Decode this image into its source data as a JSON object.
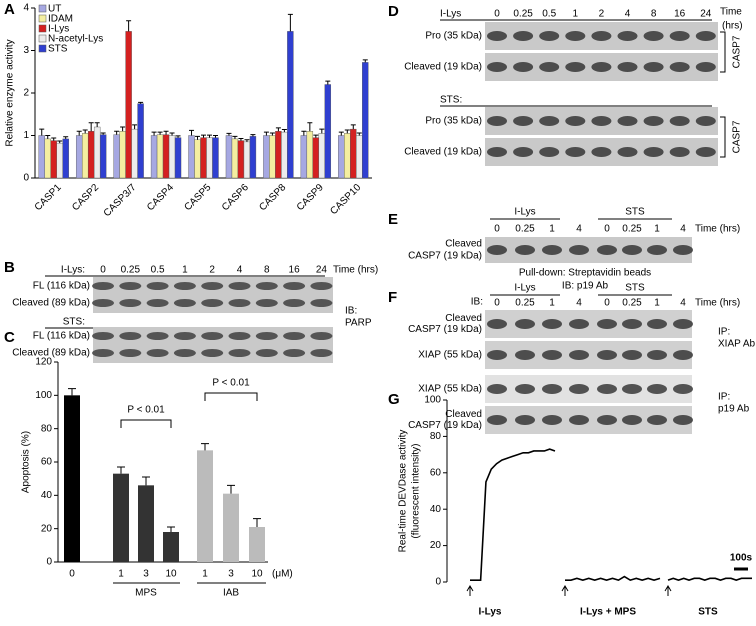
{
  "chart_data": [
    {
      "panel_label": "A",
      "type": "bar",
      "ylabel": "Relative enzyme activity",
      "categories": [
        "CASP1",
        "CASP2",
        "CASP3/7",
        "CASP4",
        "CASP5",
        "CASP6",
        "CASP8",
        "CASP9",
        "CASP10"
      ],
      "series": [
        {
          "name": "UT",
          "color": "#a6a8e2",
          "values": [
            1.0,
            1.0,
            1.02,
            1.0,
            1.0,
            1.0,
            1.0,
            1.0,
            1.0
          ],
          "errors": [
            0.15,
            0.1,
            0.08,
            0.08,
            0.12,
            0.05,
            0.08,
            0.1,
            0.08
          ]
        },
        {
          "name": "IDAM",
          "color": "#f4eea0",
          "values": [
            0.92,
            1.05,
            1.1,
            1.02,
            0.9,
            0.92,
            1.0,
            1.1,
            1.05
          ],
          "errors": [
            0.08,
            0.08,
            0.1,
            0.06,
            0.08,
            0.06,
            0.06,
            0.2,
            0.08
          ]
        },
        {
          "name": "I-Lys",
          "color": "#d42020",
          "values": [
            0.88,
            1.1,
            3.45,
            1.02,
            0.95,
            0.88,
            1.1,
            0.95,
            1.15
          ],
          "errors": [
            0.06,
            0.2,
            0.25,
            0.08,
            0.06,
            0.05,
            0.08,
            0.06,
            0.1
          ]
        },
        {
          "name": "N-acetyl-Lys",
          "color": "#ececec",
          "values": [
            0.82,
            1.2,
            1.15,
            1.0,
            0.95,
            0.85,
            1.08,
            1.05,
            1.0
          ],
          "errors": [
            0.05,
            0.1,
            0.1,
            0.06,
            0.06,
            0.05,
            0.06,
            0.1,
            0.06
          ]
        },
        {
          "name": "STS",
          "color": "#2f3fd0",
          "values": [
            0.92,
            1.02,
            1.75,
            0.95,
            0.95,
            0.98,
            3.45,
            2.2,
            2.72
          ],
          "errors": [
            0.05,
            0.04,
            0.03,
            0.04,
            0.05,
            0.04,
            0.4,
            0.08,
            0.06
          ]
        }
      ],
      "ylim": [
        0,
        4
      ],
      "yticks": [
        0,
        1,
        2,
        3,
        4
      ]
    },
    {
      "panel_label": "C",
      "type": "bar",
      "ylabel": "Apoptosis (%)",
      "categories": [
        "0",
        "1",
        "3",
        "10",
        "1",
        "3",
        "10"
      ],
      "values": [
        100,
        53,
        46,
        18,
        67,
        41,
        21
      ],
      "errors": [
        4,
        4,
        5,
        3,
        4,
        5,
        5
      ],
      "colors": [
        "#000000",
        "#333333",
        "#333333",
        "#333333",
        "#bbbbbb",
        "#bbbbbb",
        "#bbbbbb"
      ],
      "groups": [
        "MPS",
        "IAB"
      ],
      "unit": "(μM)",
      "annotations": [
        "P < 0.01",
        "P < 0.01"
      ],
      "ylim": [
        0,
        120
      ],
      "yticks": [
        0,
        20,
        40,
        60,
        80,
        100,
        120
      ]
    },
    {
      "panel_label": "G",
      "type": "line",
      "ylabel": [
        "Real-time DEVDase activity",
        "(fluorescent intensity)"
      ],
      "series": [
        {
          "name": "I-Lys",
          "color": "#000000",
          "values": [
            1,
            1,
            1,
            55,
            62,
            65,
            67,
            68,
            69,
            70,
            71,
            71,
            72,
            72,
            72,
            73,
            72
          ]
        },
        {
          "name": "I-Lys + MPS",
          "color": "#000000",
          "values": [
            1,
            1,
            2,
            1,
            2,
            1,
            2,
            1,
            2,
            1,
            3,
            1,
            2,
            1,
            2,
            1,
            2
          ]
        },
        {
          "name": "STS",
          "color": "#000000",
          "values": [
            1,
            2,
            1,
            2,
            1,
            2,
            2,
            1,
            2,
            2,
            1,
            2,
            2,
            1,
            2,
            2,
            2
          ]
        }
      ],
      "scale_label": "100s",
      "ylim": [
        0,
        100
      ],
      "yticks": [
        0,
        20,
        40,
        60,
        80,
        100
      ]
    }
  ],
  "blots": {
    "B": {
      "panel_label": "B",
      "times": [
        "0",
        "0.25",
        "0.5",
        "1",
        "2",
        "4",
        "8",
        "16",
        "24"
      ],
      "time_label": "Time (hrs)",
      "treatments": [
        {
          "name": "I-Lys:",
          "bands": [
            "FL (116 kDa)",
            "Cleaved (89 kDa)"
          ]
        },
        {
          "name": "STS:",
          "bands": [
            "FL (116 kDa)",
            "Cleaved (89 kDa)"
          ]
        }
      ],
      "ib": [
        "IB:",
        "PARP"
      ]
    },
    "D": {
      "panel_label": "D",
      "times": [
        "0",
        "0.25",
        "0.5",
        "1",
        "2",
        "4",
        "8",
        "16",
        "24"
      ],
      "time_label": [
        "Time",
        "(hrs)"
      ],
      "treatments": [
        {
          "name": "I-Lys",
          "bands": [
            "Pro (35 kDa)",
            "Cleaved (19 kDa)"
          ]
        },
        {
          "name": "STS:",
          "bands": [
            "Pro (35 kDa)",
            "Cleaved (19 kDa)"
          ]
        }
      ],
      "target": "CASP7"
    },
    "E": {
      "panel_label": "E",
      "groups": [
        "I-Lys",
        "STS"
      ],
      "times": [
        "0",
        "0.25",
        "1",
        "4",
        "0",
        "0.25",
        "1",
        "4"
      ],
      "time_label": "Time (hrs)",
      "band": [
        "Cleaved",
        "CASP7 (19 kDa)"
      ],
      "caption": [
        "Pull-down: Streptavidin beads",
        "IB: p19 Ab"
      ]
    },
    "F": {
      "panel_label": "F",
      "ib": "IB:",
      "groups": [
        "I-Lys",
        "STS"
      ],
      "times": [
        "0",
        "0.25",
        "1",
        "4",
        "0",
        "0.25",
        "1",
        "4"
      ],
      "time_label": "Time (hrs)",
      "blocks": [
        {
          "bands": [
            [
              "Cleaved",
              "CASP7 (19 kDa)"
            ],
            [
              "XIAP (55 kDa)"
            ]
          ],
          "ip": [
            "IP:",
            "XIAP Ab"
          ]
        },
        {
          "bands": [
            [
              "XIAP (55 kDa)"
            ],
            [
              "Cleaved",
              "CASP7 (19 kDa)"
            ]
          ],
          "ip": [
            "IP:",
            "p19 Ab"
          ]
        }
      ]
    }
  }
}
